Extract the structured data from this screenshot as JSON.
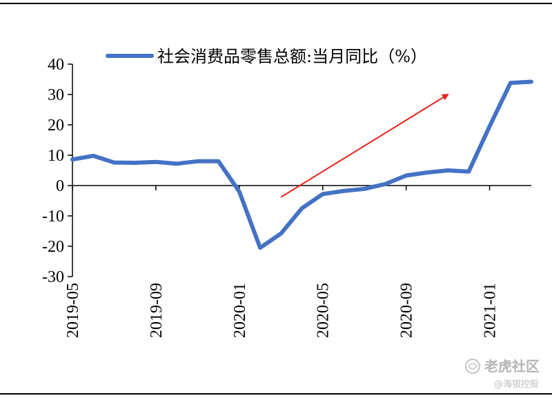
{
  "chart_data": {
    "type": "line",
    "series": [
      {
        "name": "社会消费品零售总额:当月同比（%）",
        "color": "#4472C4",
        "x": [
          "2019-05",
          "2019-06",
          "2019-07",
          "2019-08",
          "2019-09",
          "2019-10",
          "2019-11",
          "2019-12",
          "2020-01",
          "2020-02",
          "2020-03",
          "2020-04",
          "2020-05",
          "2020-06",
          "2020-07",
          "2020-08",
          "2020-09",
          "2020-10",
          "2020-11",
          "2020-12",
          "2021-01",
          "2021-02",
          "2021-03"
        ],
        "values": [
          8.6,
          9.8,
          7.6,
          7.5,
          7.8,
          7.2,
          8.0,
          8.0,
          -2.0,
          -20.5,
          -15.8,
          -7.5,
          -2.8,
          -1.8,
          -1.1,
          0.5,
          3.3,
          4.3,
          5.0,
          4.6,
          19.5,
          33.8,
          34.2
        ]
      }
    ],
    "x_tick_labels": [
      "2019-05",
      "2019-09",
      "2020-01",
      "2020-05",
      "2020-09",
      "2021-01"
    ],
    "y_tick_labels": [
      "40",
      "30",
      "20",
      "10",
      "0",
      "-10",
      "-20",
      "-30"
    ],
    "ylim": [
      -30,
      40
    ],
    "grid": false,
    "legend_position": "top",
    "annotation_arrow": {
      "color": "#e8231a",
      "from": [
        "2020-03",
        -3.8
      ],
      "to": [
        "2020-11",
        30.0
      ]
    }
  },
  "watermark": {
    "main": "老虎社区",
    "sub": "@海银控股"
  }
}
